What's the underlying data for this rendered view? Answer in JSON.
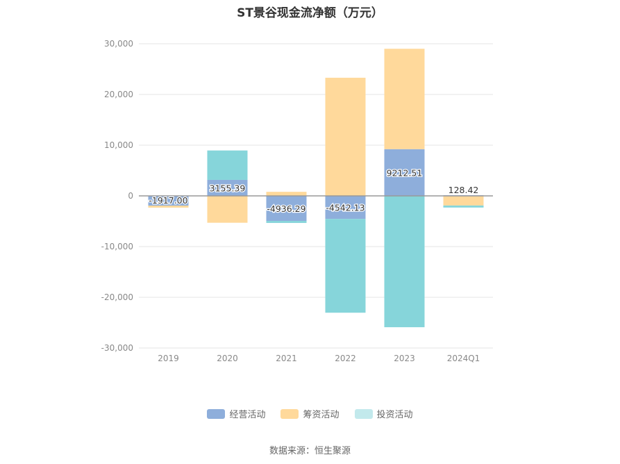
{
  "chart_data": {
    "type": "bar",
    "stacked": true,
    "title": "ST景谷现金流净额（万元）",
    "categories": [
      "2019",
      "2020",
      "2021",
      "2022",
      "2023",
      "2024Q1"
    ],
    "series": [
      {
        "name": "经营活动",
        "color": "#8eaedb",
        "values": [
          -1917.0,
          3155.39,
          -4936.29,
          -4542.13,
          9212.51,
          128.42
        ]
      },
      {
        "name": "筹资活动",
        "color": "#ffd99b",
        "values": [
          -400,
          -5300,
          800,
          23300,
          19800,
          -1900
        ]
      },
      {
        "name": "投资活动",
        "color": "#86d5da",
        "values": [
          0,
          5800,
          -400,
          -18500,
          -25900,
          -400
        ]
      }
    ],
    "data_labels": [
      "-1917.00",
      "3155.39",
      "-4936.29",
      "-4542.13",
      "9212.51",
      "128.42"
    ],
    "ylim": [
      -30000,
      30000
    ],
    "yticks": [
      30000,
      20000,
      10000,
      0,
      -10000,
      -20000,
      -30000
    ],
    "ytick_labels": [
      "30,000",
      "20,000",
      "10,000",
      "0",
      "-10,000",
      "-20,000",
      "-30,000"
    ],
    "grid": true,
    "legend_position": "bottom"
  },
  "legend": [
    {
      "label": "经营活动",
      "color": "#8eaedb"
    },
    {
      "label": "筹资活动",
      "color": "#ffd99b"
    },
    {
      "label": "投资活动",
      "color": "#c2e9ec"
    }
  ],
  "source": "数据来源：恒生聚源"
}
